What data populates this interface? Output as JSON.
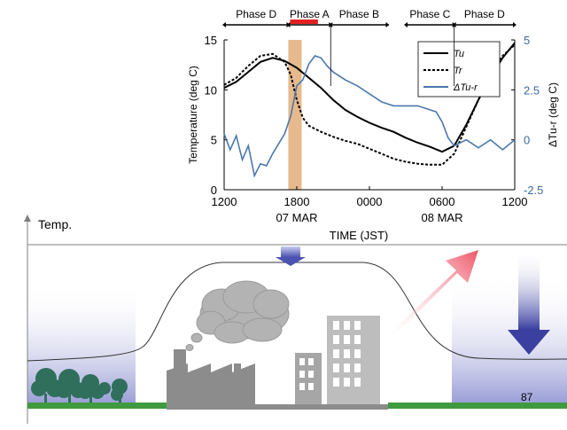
{
  "chart_data": {
    "type": "line",
    "title": "",
    "xlabel": "TIME (JST)",
    "ylabel": "Temperature (deg C)",
    "y2label": "ΔTu-r (deg C)",
    "xlim": [
      0,
      24
    ],
    "ylim": [
      0,
      15
    ],
    "y2lim": [
      -2.5,
      5
    ],
    "x_ticks": [
      {
        "x": 0,
        "label": "1200"
      },
      {
        "x": 6,
        "label": "1800"
      },
      {
        "x": 12,
        "label": "0000"
      },
      {
        "x": 18,
        "label": "0600"
      },
      {
        "x": 24,
        "label": "1200"
      }
    ],
    "date_labels": [
      {
        "x": 6,
        "label": "07 MAR"
      },
      {
        "x": 18,
        "label": "08 MAR"
      }
    ],
    "y_ticks": [
      "0",
      "5",
      "10",
      "15"
    ],
    "y2_ticks": [
      "-2.5",
      "0",
      "2.5",
      "5"
    ],
    "y2_tick_values": [
      -2.5,
      0,
      2.5,
      5
    ],
    "grid": false,
    "legend_position": "top-right",
    "shaded_band": {
      "x_start": 5.3,
      "x_end": 6.4,
      "color": "#e3b27f"
    },
    "phases": [
      {
        "label": "Phase D",
        "x_start": 0,
        "x_end": 5.3
      },
      {
        "label": "Phase A",
        "x_start": 5.3,
        "x_end": 8.8
      },
      {
        "label": "Phase B",
        "x_start": 8.8,
        "x_end": 13.5
      },
      {
        "label": "Phase  C",
        "x_start": 15,
        "x_end": 19
      },
      {
        "label": "Phase D",
        "x_start": 19,
        "x_end": 24
      }
    ],
    "series": [
      {
        "name": "Tu",
        "axis": "left",
        "color": "#000000",
        "dash": "solid",
        "x": [
          0,
          1,
          2,
          3,
          4,
          5,
          6,
          7,
          8,
          9,
          10,
          11,
          12,
          13,
          14,
          15,
          16,
          17,
          18,
          19,
          20,
          21,
          22,
          23,
          24
        ],
        "y": [
          10.2,
          10.8,
          11.8,
          12.8,
          13.2,
          12.9,
          12.2,
          11.2,
          10.2,
          9.0,
          8.0,
          7.3,
          6.7,
          6.2,
          5.8,
          5.2,
          4.7,
          4.3,
          3.8,
          4.4,
          6.5,
          9.0,
          11.3,
          13.2,
          14.7
        ]
      },
      {
        "name": "Tr",
        "axis": "left",
        "color": "#000000",
        "dash": "dash",
        "x": [
          0,
          1,
          2,
          3,
          4,
          5,
          5.5,
          6,
          6.5,
          7,
          8,
          9,
          10,
          11,
          12,
          13,
          14,
          15,
          16,
          17,
          18,
          19,
          20,
          21,
          22,
          23,
          24
        ],
        "y": [
          10.5,
          11.2,
          12.4,
          13.4,
          13.6,
          12.8,
          11.5,
          9.0,
          7.2,
          6.4,
          5.8,
          5.3,
          4.9,
          4.6,
          4.1,
          3.6,
          3.1,
          2.8,
          2.6,
          2.5,
          2.5,
          3.6,
          6.3,
          9.0,
          11.4,
          13.4,
          14.5
        ]
      },
      {
        "name": "ΔTu-r",
        "axis": "right",
        "color": "#4a78ad",
        "dash": "solid",
        "x": [
          0,
          0.5,
          1,
          1.5,
          2,
          2.5,
          3,
          3.5,
          4,
          4.5,
          5,
          5.5,
          6,
          6.5,
          7,
          7.5,
          8,
          8.5,
          9,
          10,
          11,
          12,
          13,
          14,
          15,
          16,
          17,
          17.5,
          18,
          18.5,
          19,
          20,
          21,
          22,
          23,
          24
        ],
        "y": [
          0.3,
          -0.5,
          0.2,
          -1.0,
          -0.3,
          -1.8,
          -1.2,
          -1.3,
          -0.7,
          -0.2,
          0.3,
          1.2,
          2.7,
          3.0,
          3.8,
          4.2,
          4.1,
          3.7,
          3.4,
          3.0,
          2.7,
          2.3,
          1.9,
          1.7,
          1.7,
          1.7,
          1.5,
          1.4,
          0.9,
          0.1,
          -0.3,
          0.0,
          -0.4,
          0.0,
          -0.5,
          0.0
        ]
      }
    ]
  },
  "illustration": {
    "temp_label": "Temp.",
    "page_number": "87",
    "colors": {
      "ground": "#3f9a3f",
      "trees": "#2f6f5c",
      "buildings": "#8c8c8c",
      "cloud": "#b3b3b3",
      "cold": "#5a5fb8",
      "warm": "#e05a6a"
    }
  }
}
